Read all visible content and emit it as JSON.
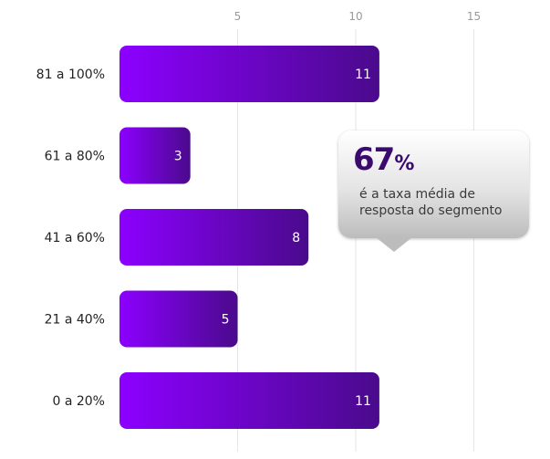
{
  "chart_data": {
    "type": "bar",
    "orientation": "horizontal",
    "categories": [
      "81 a 100%",
      "61 a 80%",
      "41 a 60%",
      "21 a 40%",
      "0 a 20%"
    ],
    "values": [
      11,
      3,
      8,
      5,
      11
    ],
    "x_ticks": [
      5,
      10,
      15
    ],
    "xlim": [
      0,
      17
    ],
    "grid": true,
    "data_labels": true,
    "bar_gradient": [
      "#8c00ff",
      "#4a0a8c"
    ],
    "title": "",
    "xlabel": "",
    "ylabel": ""
  },
  "callout": {
    "value": "67",
    "unit": "%",
    "text": "é a taxa média de resposta do segmento"
  }
}
